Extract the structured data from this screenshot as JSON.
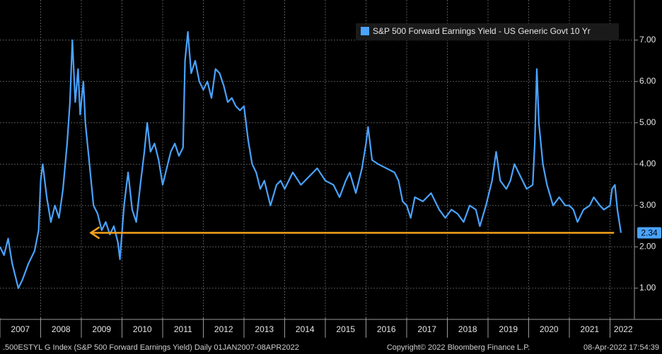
{
  "chart_data": {
    "type": "line",
    "series": [
      {
        "name": "S&P 500 Forward Earnings Yield - US Generic Govt 10 Yr",
        "color": "#4aa3ff",
        "x": [
          2007.0,
          2007.1,
          2007.2,
          2007.3,
          2007.45,
          2007.55,
          2007.7,
          2007.85,
          2007.95,
          2008.0,
          2008.05,
          2008.15,
          2008.25,
          2008.35,
          2008.45,
          2008.55,
          2008.65,
          2008.72,
          2008.78,
          2008.85,
          2008.92,
          2008.97,
          2009.05,
          2009.1,
          2009.2,
          2009.3,
          2009.4,
          2009.5,
          2009.6,
          2009.7,
          2009.8,
          2009.9,
          2009.95,
          2010.05,
          2010.15,
          2010.25,
          2010.35,
          2010.45,
          2010.55,
          2010.62,
          2010.7,
          2010.8,
          2010.9,
          2011.0,
          2011.1,
          2011.2,
          2011.3,
          2011.4,
          2011.5,
          2011.55,
          2011.62,
          2011.7,
          2011.8,
          2011.9,
          2012.0,
          2012.1,
          2012.2,
          2012.3,
          2012.4,
          2012.5,
          2012.6,
          2012.7,
          2012.8,
          2012.9,
          2013.0,
          2013.1,
          2013.2,
          2013.3,
          2013.4,
          2013.5,
          2013.6,
          2013.65,
          2013.8,
          2013.9,
          2014.0,
          2014.2,
          2014.4,
          2014.6,
          2014.8,
          2015.0,
          2015.2,
          2015.35,
          2015.5,
          2015.6,
          2015.75,
          2015.9,
          2016.0,
          2016.05,
          2016.15,
          2016.3,
          2016.5,
          2016.7,
          2016.8,
          2016.9,
          2017.0,
          2017.1,
          2017.2,
          2017.4,
          2017.6,
          2017.8,
          2017.95,
          2018.1,
          2018.25,
          2018.4,
          2018.55,
          2018.7,
          2018.8,
          2018.95,
          2019.1,
          2019.2,
          2019.3,
          2019.45,
          2019.55,
          2019.65,
          2019.8,
          2019.95,
          2020.1,
          2020.15,
          2020.2,
          2020.25,
          2020.35,
          2020.45,
          2020.6,
          2020.75,
          2020.9,
          2021.0,
          2021.1,
          2021.2,
          2021.35,
          2021.5,
          2021.6,
          2021.75,
          2021.85,
          2022.0,
          2022.05,
          2022.12,
          2022.18,
          2022.27
        ],
        "values": [
          2.0,
          1.8,
          2.2,
          1.6,
          1.0,
          1.2,
          1.6,
          1.9,
          2.4,
          3.6,
          4.0,
          3.2,
          2.6,
          3.0,
          2.7,
          3.4,
          4.5,
          5.5,
          7.0,
          5.5,
          6.3,
          5.2,
          6.0,
          5.0,
          4.0,
          3.0,
          2.8,
          2.4,
          2.6,
          2.3,
          2.5,
          2.1,
          1.7,
          3.0,
          3.8,
          2.9,
          2.6,
          3.5,
          4.3,
          5.0,
          4.3,
          4.5,
          4.1,
          3.5,
          3.9,
          4.3,
          4.5,
          4.2,
          4.4,
          6.5,
          7.2,
          6.2,
          6.5,
          6.0,
          5.8,
          6.0,
          5.6,
          6.3,
          6.2,
          5.9,
          5.5,
          5.6,
          5.4,
          5.3,
          5.4,
          4.6,
          4.0,
          3.8,
          3.4,
          3.6,
          3.2,
          3.0,
          3.5,
          3.6,
          3.4,
          3.8,
          3.5,
          3.7,
          3.9,
          3.6,
          3.5,
          3.2,
          3.6,
          3.8,
          3.3,
          3.9,
          4.5,
          4.9,
          4.1,
          4.0,
          3.9,
          3.8,
          3.6,
          3.1,
          3.0,
          2.7,
          3.2,
          3.1,
          3.3,
          2.9,
          2.7,
          2.9,
          2.8,
          2.6,
          3.0,
          2.9,
          2.5,
          3.0,
          3.6,
          4.3,
          3.6,
          3.4,
          3.6,
          4.0,
          3.7,
          3.4,
          3.5,
          4.5,
          6.3,
          5.0,
          4.0,
          3.5,
          3.0,
          3.2,
          3.0,
          3.0,
          2.9,
          2.6,
          2.9,
          3.0,
          3.2,
          3.0,
          2.9,
          3.0,
          3.4,
          3.5,
          2.9,
          2.34
        ]
      }
    ],
    "xlim": [
      2007,
      2022.6
    ],
    "xticks": [
      2007,
      2008,
      2009,
      2010,
      2011,
      2012,
      2013,
      2014,
      2015,
      2016,
      2017,
      2018,
      2019,
      2020,
      2021,
      2022
    ],
    "ylim": [
      0.28,
      7.97
    ],
    "yticks": [
      {
        "value": 1,
        "label": "1.00"
      },
      {
        "value": 2,
        "label": "2.00"
      },
      {
        "value": 3,
        "label": "3.00"
      },
      {
        "value": 4,
        "label": "4.00"
      },
      {
        "value": 5,
        "label": "5.00"
      },
      {
        "value": 6,
        "label": "6.00"
      },
      {
        "value": 7,
        "label": "7.00"
      }
    ],
    "grid": true,
    "legend": "upper right",
    "reference_line": {
      "value": 2.34,
      "xlim": [
        2009.2,
        2022.1
      ],
      "color": "#f7a21b"
    },
    "footer": {
      "left": ".500ESTYL G Index (S&P 500 Forward Earnings Yield)  Daily 01JAN2007-08APR2022",
      "center": "Copyright© 2022 Bloomberg Finance L.P.",
      "right": "08-Apr-2022 17:54:39"
    }
  }
}
